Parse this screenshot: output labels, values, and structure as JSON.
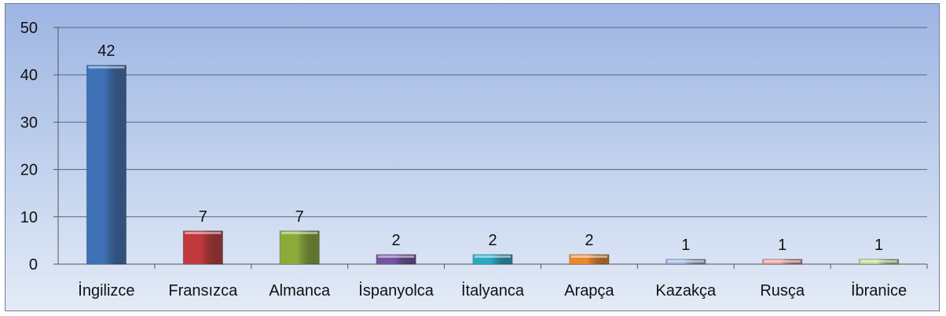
{
  "chart_data": {
    "type": "bar",
    "categories": [
      "İngilizce",
      "Fransızca",
      "Almanca",
      "İspanyolca",
      "İtalyanca",
      "Arapça",
      "Kazakça",
      "Rusça",
      "İbranice"
    ],
    "values": [
      42,
      7,
      7,
      2,
      2,
      2,
      1,
      1,
      1
    ],
    "data_labels": [
      "42",
      "7",
      "7",
      "2",
      "2",
      "2",
      "1",
      "1",
      "1"
    ],
    "title": "",
    "xlabel": "",
    "ylabel": "",
    "ylim": [
      0,
      50
    ],
    "yticks": [
      "0",
      "10",
      "20",
      "30",
      "40",
      "50"
    ],
    "grid": true,
    "legend": "none",
    "bar_colors": [
      "#3f71b6",
      "#c0393d",
      "#8aaa3a",
      "#7553a3",
      "#2aa9c4",
      "#e8892b",
      "#93b0de",
      "#e49494",
      "#bcd48f"
    ],
    "background": "#b6c9ec"
  }
}
